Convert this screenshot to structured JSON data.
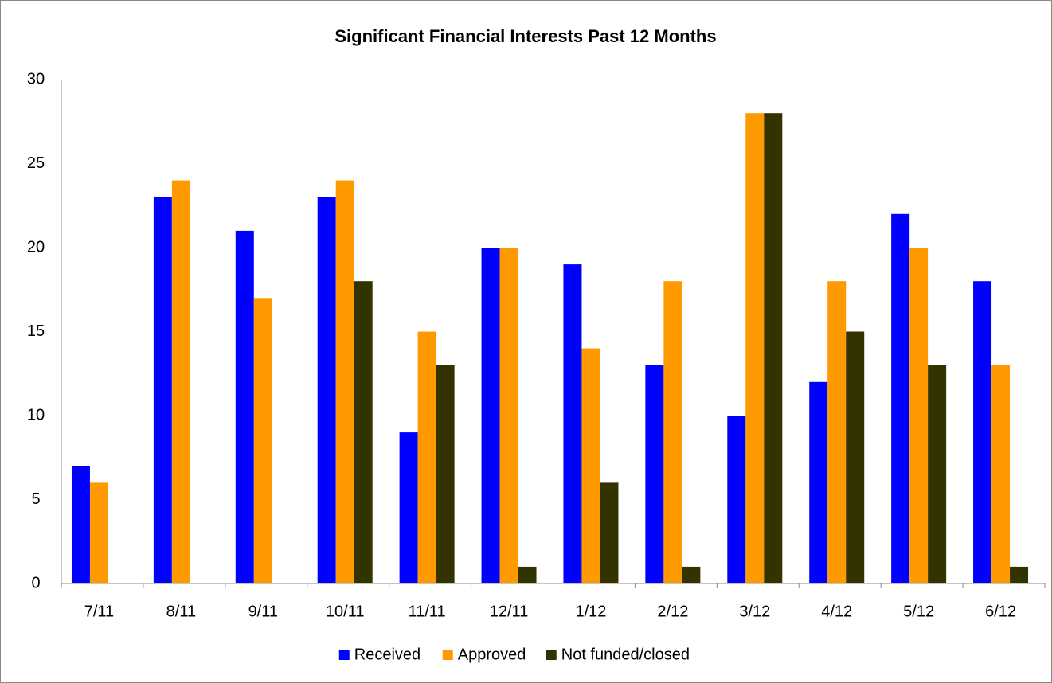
{
  "chart_data": {
    "type": "bar",
    "title": "Significant Financial Interests Past 12 Months",
    "categories": [
      "7/11",
      "8/11",
      "9/11",
      "10/11",
      "11/11",
      "12/11",
      "1/12",
      "2/12",
      "3/12",
      "4/12",
      "5/12",
      "6/12"
    ],
    "series": [
      {
        "name": "Received",
        "color": "#0000ff",
        "values": [
          7,
          23,
          21,
          23,
          9,
          20,
          19,
          13,
          10,
          12,
          22,
          18
        ]
      },
      {
        "name": "Approved",
        "color": "#ff9900",
        "values": [
          6,
          24,
          17,
          24,
          15,
          20,
          14,
          18,
          28,
          18,
          20,
          13
        ]
      },
      {
        "name": "Not funded/closed",
        "color": "#333300",
        "values": [
          0,
          0,
          0,
          18,
          13,
          1,
          6,
          1,
          28,
          15,
          13,
          1
        ]
      }
    ],
    "ylim": [
      0,
      30
    ],
    "yticks": [
      0,
      5,
      10,
      15,
      20,
      25,
      30
    ],
    "grid": false,
    "legend": "bottom"
  }
}
